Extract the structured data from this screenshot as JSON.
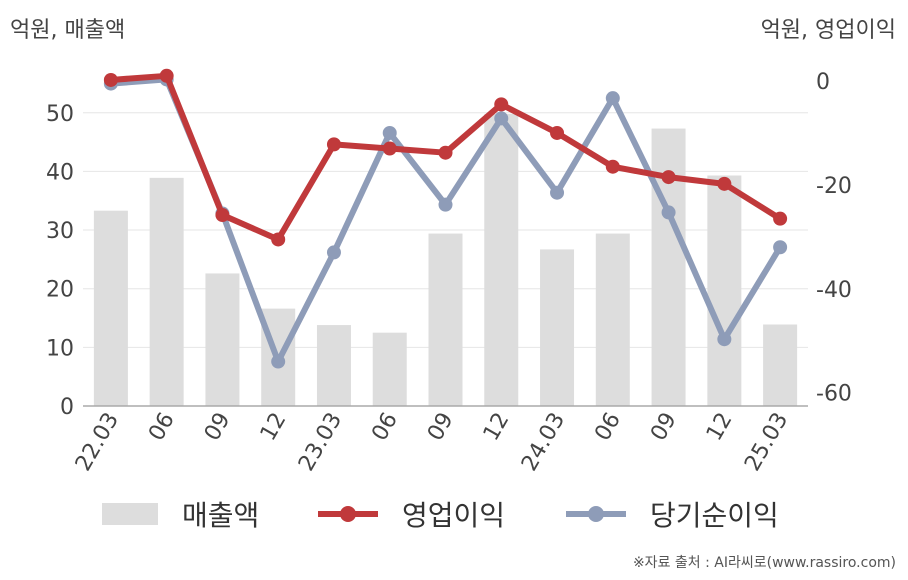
{
  "unit_left": "억원, 매출액",
  "unit_right": "억원, 영업이익",
  "source": "※자료 출처 : AI라씨로(www.rassiro.com)",
  "colors": {
    "revenue": "#dddddd",
    "operating_profit": "#c0393b",
    "net_profit": "#8e9cb8",
    "grid": "#e6e6e6",
    "axis": "#aaaaaa",
    "text": "#444444"
  },
  "chart_data": {
    "type": "bar+line",
    "categories": [
      "22.03",
      "06",
      "09",
      "12",
      "23.03",
      "06",
      "09",
      "12",
      "24.03",
      "06",
      "09",
      "12",
      "25.03"
    ],
    "left_axis": {
      "ticks": [
        0,
        10,
        20,
        30,
        40,
        50
      ],
      "ylim": [
        0,
        56
      ]
    },
    "right_axis": {
      "ticks": [
        0,
        -20,
        -40,
        -60
      ],
      "ylim": [
        -62,
        3.5
      ]
    },
    "grid": true,
    "legend_position": "bottom",
    "series": [
      {
        "name": "매출액",
        "type": "bar",
        "axis": "left",
        "values": [
          33.3,
          38.9,
          22.6,
          16.6,
          13.8,
          12.5,
          29.4,
          49.8,
          26.7,
          29.4,
          47.3,
          39.3,
          13.9
        ]
      },
      {
        "name": "영업이익",
        "type": "line",
        "axis": "right",
        "values": [
          0.2,
          1.0,
          -25.8,
          -30.5,
          -12.2,
          -13.0,
          -13.8,
          -4.5,
          -10.0,
          -16.5,
          -18.5,
          -19.8,
          -26.5
        ]
      },
      {
        "name": "당기순이익",
        "type": "line",
        "axis": "right",
        "values": [
          -0.5,
          0.3,
          -25.5,
          -54.0,
          -33.0,
          -10.0,
          -23.8,
          -7.2,
          -21.5,
          -3.3,
          -25.3,
          -49.7,
          -32.0
        ]
      }
    ]
  }
}
